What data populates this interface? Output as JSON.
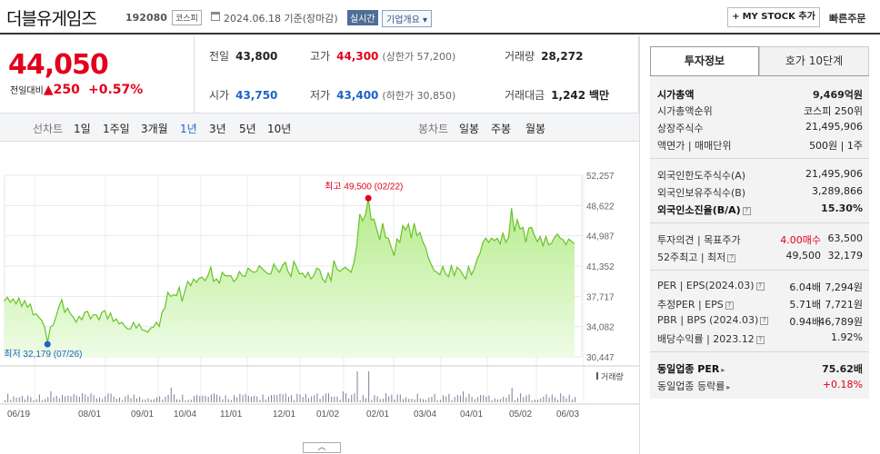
{
  "header": {
    "name": "더블유게임즈",
    "code": "192080",
    "market": "코스피",
    "date": "2024.06.18 기준(장마감)",
    "live": "실시간",
    "corp_info": "기업개요",
    "mystock": "MY STOCK 추가",
    "quick_order": "빠른주문"
  },
  "summary": {
    "price": "44,050",
    "change_label": "전일대비",
    "change_value": "250",
    "change_pct": "+0.57%",
    "prev_label": "전일",
    "prev": "43,800",
    "high_label": "고가",
    "high": "44,300",
    "high_sub": "(상한가 57,200)",
    "vol_label": "거래량",
    "vol": "28,272",
    "open_label": "시가",
    "open": "43,750",
    "low_label": "저가",
    "low": "43,400",
    "low_sub": "(하한가 30,850)",
    "amt_label": "거래대금",
    "amt": "1,242",
    "amt_unit": "백만"
  },
  "tabs": {
    "line_label": "선차트",
    "periods": [
      "1일",
      "1주일",
      "3개월",
      "1년",
      "3년",
      "5년",
      "10년"
    ],
    "candle_label": "봉차트",
    "candles": [
      "일봉",
      "주봉",
      "월봉"
    ]
  },
  "chart_data": {
    "type": "area",
    "yticks": [
      "52,257",
      "48,622",
      "44,987",
      "41,352",
      "37,717",
      "34,082",
      "30,447"
    ],
    "ylim": [
      30447,
      52257
    ],
    "xticks": [
      "06/19",
      "08/01",
      "09/01",
      "10/04",
      "11/01",
      "12/01",
      "01/02",
      "02/01",
      "03/04",
      "04/01",
      "05/02",
      "06/03"
    ],
    "high_annotation": "최고 49,500 (02/22)",
    "low_annotation": "최저 32,179 (07/26)",
    "volume_label": "거래량",
    "values": [
      37200,
      37600,
      37000,
      37400,
      36800,
      37500,
      36500,
      37200,
      36400,
      36800,
      35500,
      35600,
      35200,
      34800,
      34000,
      32179,
      34000,
      34300,
      35300,
      36500,
      37300,
      35800,
      36300,
      35600,
      35200,
      34600,
      35300,
      34900,
      35800,
      35900,
      35000,
      35500,
      35500,
      34900,
      35800,
      36000,
      35000,
      35700,
      34700,
      35000,
      34400,
      34600,
      34100,
      33800,
      33800,
      34600,
      33900,
      34400,
      33700,
      33600,
      33400,
      33900,
      34000,
      34600,
      34100,
      35800,
      36300,
      38200,
      37700,
      37900,
      37800,
      38800,
      37100,
      38400,
      39500,
      39000,
      39800,
      39400,
      39900,
      40000,
      39600,
      40200,
      41200,
      39500,
      39800,
      39300,
      40600,
      40200,
      40200,
      40200,
      39500,
      39800,
      40700,
      40200,
      40100,
      41100,
      40800,
      40600,
      40700,
      41400,
      41000,
      40700,
      40400,
      40400,
      41600,
      41000,
      40600,
      41400,
      41800,
      40700,
      40100,
      41900,
      41200,
      40400,
      40500,
      40000,
      40600,
      39800,
      40200,
      41100,
      40900,
      39800,
      39400,
      40500,
      39600,
      42000,
      41000,
      40700,
      41000,
      41200,
      40900,
      40600,
      41800,
      43800,
      47600,
      46800,
      47500,
      49500,
      46900,
      47000,
      45700,
      44500,
      46500,
      44800,
      44700,
      43600,
      42600,
      44600,
      44200,
      46200,
      45700,
      46400,
      44700,
      46500,
      45000,
      45400,
      44300,
      43600,
      42300,
      41500,
      40800,
      40600,
      40300,
      41300,
      40400,
      40100,
      41400,
      40200,
      41200,
      40900,
      40300,
      39800,
      41300,
      40300,
      41000,
      42200,
      42900,
      44200,
      44700,
      44200,
      44700,
      44400,
      44700,
      44000,
      45300,
      44200,
      44800,
      48300,
      45500,
      46900,
      45800,
      46000,
      44200,
      45900,
      46000,
      45000,
      44300,
      44900,
      43800,
      44900,
      43900,
      44100,
      44800,
      45200,
      44700,
      44500,
      43900,
      44600,
      44300,
      44050
    ]
  },
  "right": {
    "tab_on": "투자정보",
    "tab_off": "호가 10단계",
    "rows": [
      {
        "k": "시가총액",
        "v": "9,469억원",
        "bold": true
      },
      {
        "k": "시가총액순위",
        "v": "코스피 250위"
      },
      {
        "k": "상장주식수",
        "v": "21,495,906"
      },
      {
        "k": "액면가 | 매매단위",
        "v": "500원 | 1주"
      },
      {
        "k": "외국인한도주식수(A)",
        "v": "21,495,906"
      },
      {
        "k": "외국인보유주식수(B)",
        "v": "3,289,866"
      },
      {
        "k": "외국인소진율(B/A)",
        "v": "15.30%",
        "bold": true
      },
      {
        "k": "투자의견 | 목표주가",
        "m": "4.00매수",
        "v": "63,500"
      },
      {
        "k": "52주최고 | 최저",
        "m": "49,500",
        "v": "32,179"
      },
      {
        "k": "PER | EPS(2024.03)",
        "m": "6.04배",
        "v": "7,294원"
      },
      {
        "k": "추정PER | EPS",
        "m": "5.71배",
        "v": "7,721원"
      },
      {
        "k": "PBR | BPS (2024.03)",
        "m": "0.94배",
        "v": "46,789원"
      },
      {
        "k": "배당수익률 | 2023.12",
        "v": "1.92%"
      },
      {
        "k": "동일업종 PER",
        "v": "75.62배",
        "bold": true
      },
      {
        "k": "동일업종 등락률",
        "v": "+0.18%"
      }
    ]
  },
  "fold": "︿"
}
